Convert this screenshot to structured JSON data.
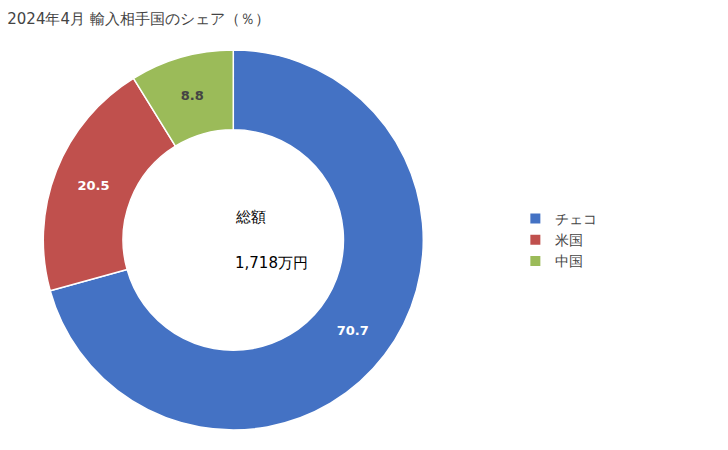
{
  "chart_data": {
    "type": "donut",
    "title": "2024年4月 輸入相手国のシェア（％）",
    "categories": [
      "チェコ",
      "米国",
      "中国"
    ],
    "values": [
      70.7,
      20.5,
      8.8
    ],
    "colors": [
      "#4472C4",
      "#C0504D",
      "#9BBB59"
    ],
    "data_labels": true,
    "legend": "right",
    "annotations": [
      "総額",
      "1,718万円"
    ]
  }
}
